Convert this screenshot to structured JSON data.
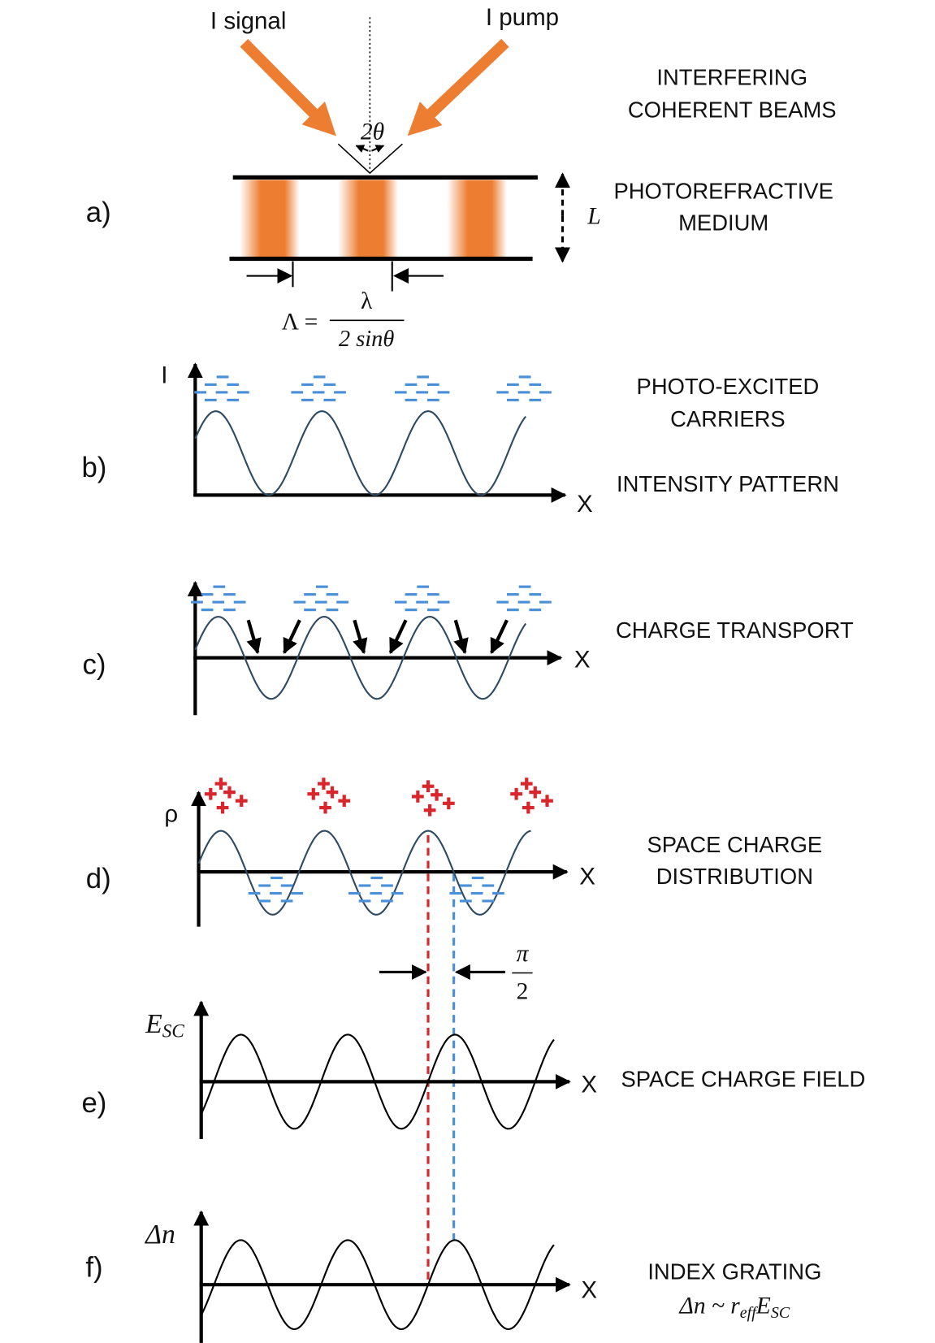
{
  "panels": {
    "a": {
      "label": "a)",
      "signal": "I signal",
      "pump": "I pump",
      "angle": "2θ",
      "beams": [
        "INTERFERING",
        "COHERENT BEAMS"
      ],
      "medium": [
        "PHOTOREFRACTIVE",
        "MEDIUM"
      ],
      "thickness": "L",
      "period": {
        "lhs": "Λ =",
        "numerator": "λ",
        "denominator": "2 sinθ"
      }
    },
    "b": {
      "label": "b)",
      "axis_y": "I",
      "axis_x": "X",
      "carriers": [
        "PHOTO-EXCITED",
        "CARRIERS"
      ],
      "pattern": "INTENSITY PATTERN"
    },
    "c": {
      "label": "c)",
      "axis_x": "X",
      "caption": "CHARGE TRANSPORT"
    },
    "d": {
      "label": "d)",
      "axis_y": "ρ",
      "axis_x": "X",
      "caption": [
        "SPACE CHARGE",
        "DISTRIBUTION"
      ]
    },
    "phase_shift": {
      "numerator": "π",
      "denominator": "2"
    },
    "e": {
      "label": "e)",
      "axis_y": {
        "symbol": "E",
        "subscript": "SC"
      },
      "axis_x": "X",
      "caption": "SPACE CHARGE FIELD"
    },
    "f": {
      "label": "f)",
      "axis_y": "Δn",
      "axis_x": "X",
      "caption": "INDEX GRATING",
      "formula": {
        "lhs": "Δn ~ r",
        "r_subscript": "eff",
        "field": "E",
        "field_subscript": "SC"
      }
    }
  }
}
